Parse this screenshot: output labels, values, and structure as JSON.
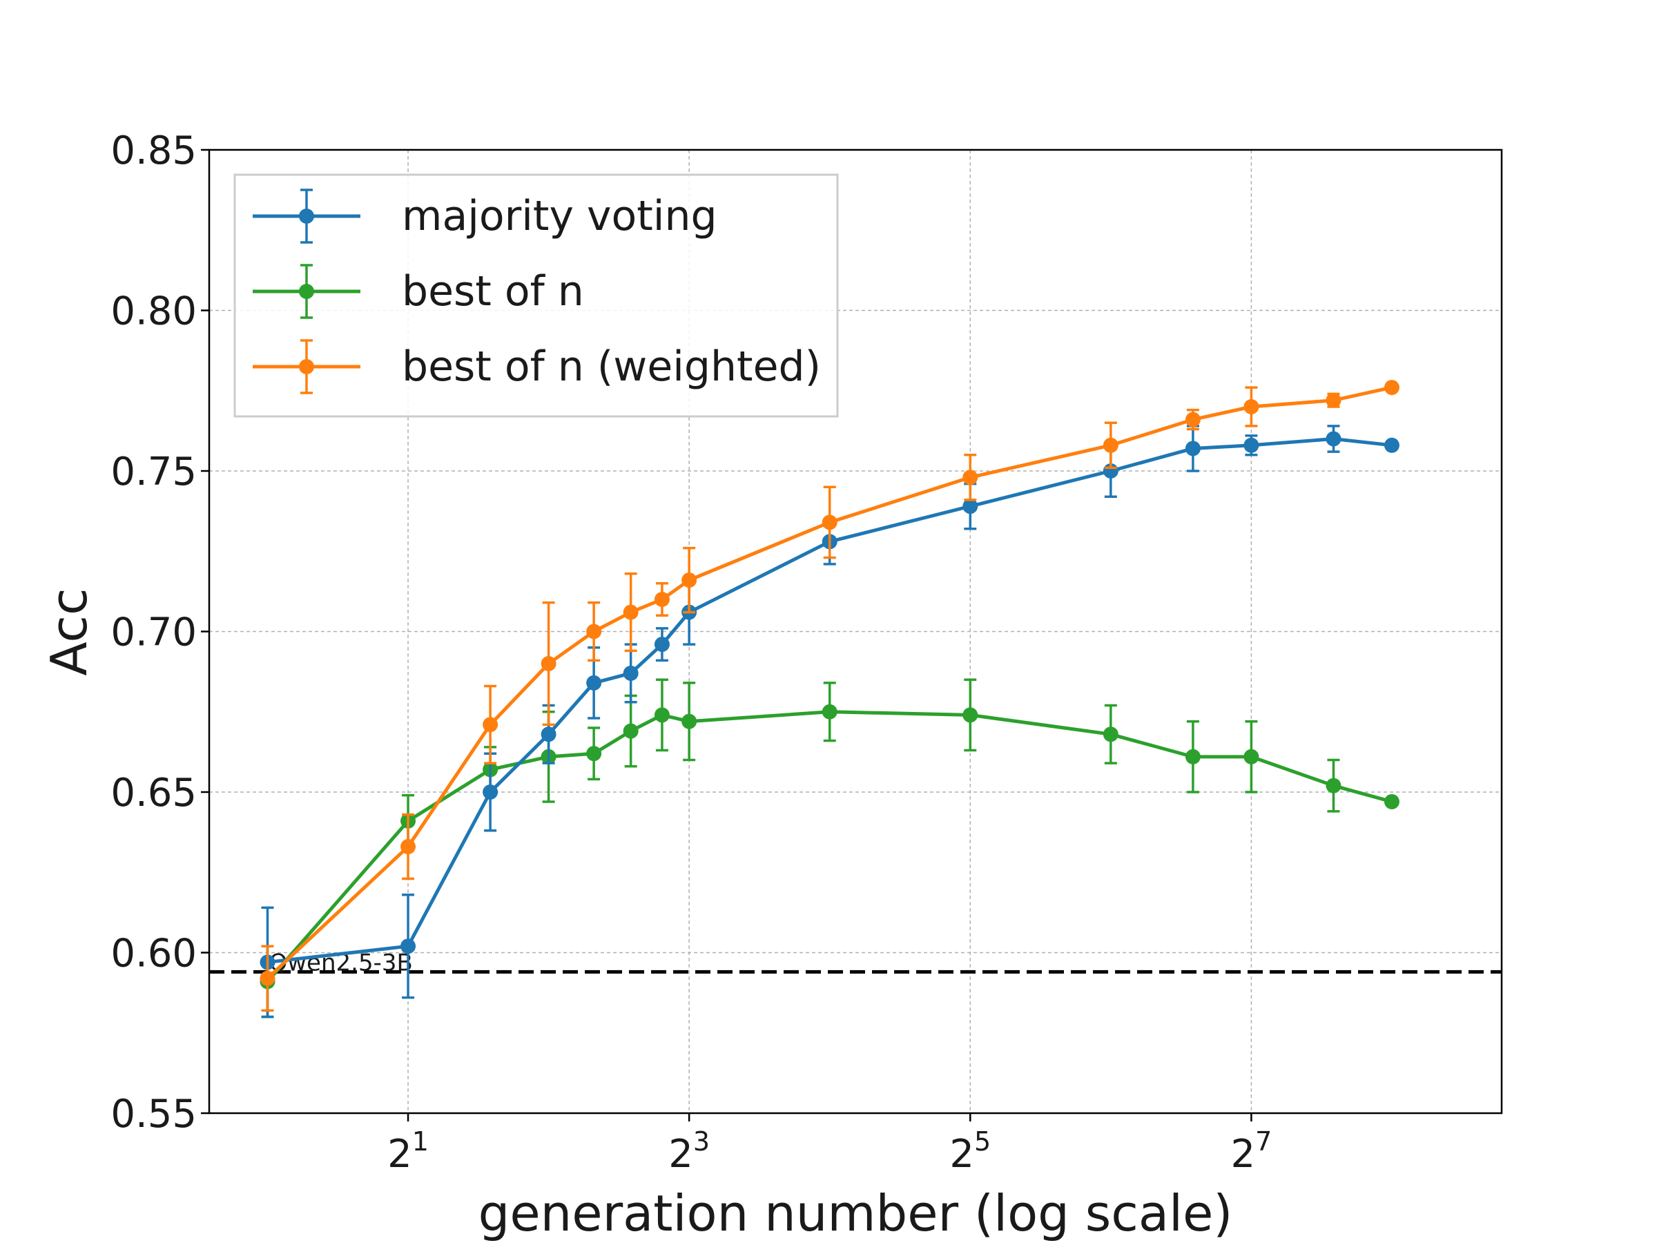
{
  "chart_data": {
    "type": "line",
    "xlabel": "generation number (log scale)",
    "ylabel": "Acc",
    "x_scale": "log2",
    "xlim": [
      0.75,
      440
    ],
    "ylim": [
      0.55,
      0.85
    ],
    "grid": true,
    "legend_position": "top-left",
    "x_ticks": [
      {
        "value": 2,
        "base": "2",
        "exp": "1"
      },
      {
        "value": 8,
        "base": "2",
        "exp": "3"
      },
      {
        "value": 32,
        "base": "2",
        "exp": "5"
      },
      {
        "value": 128,
        "base": "2",
        "exp": "7"
      }
    ],
    "y_ticks": [
      "0.55",
      "0.60",
      "0.65",
      "0.70",
      "0.75",
      "0.80",
      "0.85"
    ],
    "x": [
      1,
      2,
      3,
      4,
      5,
      6,
      7,
      8,
      16,
      32,
      64,
      96,
      128,
      192,
      256
    ],
    "series": [
      {
        "name": "majority voting",
        "color": "#1f77b4",
        "values": [
          0.597,
          0.602,
          0.65,
          0.668,
          0.684,
          0.687,
          0.696,
          0.706,
          0.728,
          0.739,
          0.75,
          0.757,
          0.758,
          0.76,
          0.758
        ],
        "errors": [
          0.017,
          0.016,
          0.012,
          0.009,
          0.011,
          0.009,
          0.005,
          0.01,
          0.007,
          0.007,
          0.008,
          0.007,
          0.003,
          0.004,
          0.0
        ]
      },
      {
        "name": "best of n",
        "color": "#2ca02c",
        "values": [
          0.591,
          0.641,
          0.657,
          0.661,
          0.662,
          0.669,
          0.674,
          0.672,
          0.675,
          0.674,
          0.668,
          0.661,
          0.661,
          0.652,
          0.647
        ],
        "errors": [
          0.011,
          0.008,
          0.007,
          0.014,
          0.008,
          0.011,
          0.011,
          0.012,
          0.009,
          0.011,
          0.009,
          0.011,
          0.011,
          0.008,
          0.0
        ]
      },
      {
        "name": "best of n (weighted)",
        "color": "#ff7f0e",
        "values": [
          0.592,
          0.633,
          0.671,
          0.69,
          0.7,
          0.706,
          0.71,
          0.716,
          0.734,
          0.748,
          0.758,
          0.766,
          0.77,
          0.772,
          0.776
        ],
        "errors": [
          0.01,
          0.01,
          0.012,
          0.019,
          0.009,
          0.012,
          0.005,
          0.01,
          0.011,
          0.007,
          0.007,
          0.003,
          0.006,
          0.002,
          0.0
        ]
      }
    ],
    "baseline": {
      "label": "Qwen2.5-3B",
      "value": 0.594,
      "color": "#000000"
    }
  }
}
